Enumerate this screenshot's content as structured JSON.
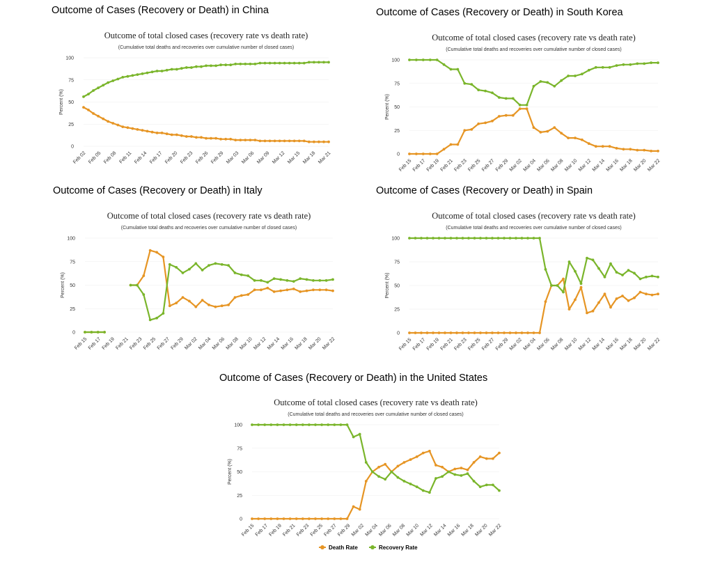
{
  "colors": {
    "death": "#e69524",
    "recovery": "#7ab52b"
  },
  "legend": {
    "death_label": "Death Rate",
    "recovery_label": "Recovery Rate"
  },
  "chart_data": [
    {
      "type": "line",
      "heading": "Outcome of Cases (Recovery or Death) in China",
      "title": "Outcome of total closed cases (recovery rate vs death rate)",
      "subtitle": "(Cumulative total deaths and recoveries over cumulative number of closed cases)",
      "ylabel": "Percent (%)",
      "ylim": [
        0,
        100
      ],
      "yticks": [
        0,
        25,
        50,
        75,
        100
      ],
      "xtick_labels": [
        "Feb 02",
        "Feb 05",
        "Feb 08",
        "Feb 11",
        "Feb 14",
        "Feb 17",
        "Feb 20",
        "Feb 23",
        "Feb 26",
        "Feb 29",
        "Mar 03",
        "Mar 06",
        "Mar 09",
        "Mar 12",
        "Mar 15",
        "Mar 18",
        "Mar 21"
      ],
      "series": [
        {
          "name": "Death Rate",
          "values": [
            44,
            41,
            37,
            34,
            31,
            28,
            26,
            24,
            22,
            21,
            20,
            19,
            18,
            17,
            16,
            15,
            15,
            14,
            13,
            13,
            12,
            11,
            11,
            10,
            10,
            9,
            9,
            9,
            8,
            8,
            8,
            7,
            7,
            7,
            7,
            7,
            6,
            6,
            6,
            6,
            6,
            6,
            6,
            6,
            6,
            6,
            5,
            5,
            5,
            5,
            5
          ]
        },
        {
          "name": "Recovery Rate",
          "values": [
            56,
            59,
            63,
            66,
            69,
            72,
            74,
            76,
            78,
            79,
            80,
            81,
            82,
            83,
            84,
            85,
            85,
            86,
            87,
            87,
            88,
            89,
            89,
            90,
            90,
            91,
            91,
            91,
            92,
            92,
            92,
            93,
            93,
            93,
            93,
            93,
            94,
            94,
            94,
            94,
            94,
            94,
            94,
            94,
            94,
            94,
            95,
            95,
            95,
            95,
            95
          ]
        }
      ]
    },
    {
      "type": "line",
      "heading": "Outcome of Cases (Recovery or Death) in South Korea",
      "title": "Outcome of total closed cases (recovery rate vs death rate)",
      "subtitle": "(Cumulative total deaths and recoveries over cumulative number of closed cases)",
      "ylabel": "Percent (%)",
      "ylim": [
        0,
        100
      ],
      "yticks": [
        0,
        25,
        50,
        75,
        100
      ],
      "xtick_labels": [
        "Feb 15",
        "Feb 17",
        "Feb 19",
        "Feb 21",
        "Feb 23",
        "Feb 25",
        "Feb 27",
        "Feb 29",
        "Mar 02",
        "Mar 04",
        "Mar 06",
        "Mar 08",
        "Mar 10",
        "Mar 12",
        "Mar 14",
        "Mar 16",
        "Mar 18",
        "Mar 20",
        "Mar 22"
      ],
      "series": [
        {
          "name": "Death Rate",
          "values": [
            0,
            0,
            0,
            0,
            0,
            5,
            10,
            10,
            25,
            26,
            32,
            33,
            35,
            40,
            41,
            41,
            48,
            48,
            28,
            23,
            24,
            28,
            22,
            17,
            17,
            15,
            11,
            8,
            8,
            8,
            6,
            5,
            5,
            4,
            4,
            3,
            3
          ]
        },
        {
          "name": "Recovery Rate",
          "values": [
            100,
            100,
            100,
            100,
            100,
            95,
            90,
            90,
            75,
            74,
            68,
            67,
            65,
            60,
            59,
            59,
            52,
            52,
            72,
            77,
            76,
            72,
            78,
            83,
            83,
            85,
            89,
            92,
            92,
            92,
            94,
            95,
            95,
            96,
            96,
            97,
            97
          ]
        }
      ]
    },
    {
      "type": "line",
      "heading": "Outcome of Cases (Recovery or Death) in Italy",
      "title": "Outcome of total closed cases (recovery rate vs death rate)",
      "subtitle": "(Cumulative total deaths and recoveries over cumulative number of closed cases)",
      "ylabel": "Percent (%)",
      "ylim": [
        0,
        100
      ],
      "yticks": [
        0,
        25,
        50,
        75,
        100
      ],
      "xtick_labels": [
        "Feb 15",
        "Feb 17",
        "Feb 19",
        "Feb 21",
        "Feb 23",
        "Feb 25",
        "Feb 27",
        "Feb 29",
        "Mar 02",
        "Mar 04",
        "Mar 06",
        "Mar 08",
        "Mar 10",
        "Mar 12",
        "Mar 14",
        "Mar 16",
        "Mar 18",
        "Mar 20",
        "Mar 22"
      ],
      "series": [
        {
          "name": "Death Rate",
          "values": [
            0,
            0,
            0,
            0,
            null,
            null,
            null,
            50,
            50,
            60,
            87,
            85,
            80,
            28,
            31,
            37,
            33,
            27,
            34,
            29,
            27,
            28,
            29,
            37,
            39,
            40,
            45,
            45,
            47,
            43,
            44,
            45,
            46,
            43,
            44,
            45,
            45,
            45,
            44
          ]
        },
        {
          "name": "Recovery Rate",
          "values": [
            0,
            0,
            0,
            0,
            null,
            null,
            null,
            50,
            50,
            40,
            13,
            15,
            20,
            72,
            69,
            63,
            67,
            73,
            66,
            71,
            73,
            72,
            71,
            63,
            61,
            60,
            55,
            55,
            53,
            57,
            56,
            55,
            54,
            57,
            56,
            55,
            55,
            55,
            56
          ]
        }
      ]
    },
    {
      "type": "line",
      "heading": "Outcome of Cases (Recovery or Death) in Spain",
      "title": "Outcome of total closed cases (recovery rate vs death rate)",
      "subtitle": "(Cumulative total deaths and recoveries over cumulative number of closed cases)",
      "ylabel": "Percent (%)",
      "ylim": [
        0,
        100
      ],
      "yticks": [
        0,
        25,
        50,
        75,
        100
      ],
      "xtick_labels": [
        "Feb 15",
        "Feb 17",
        "Feb 19",
        "Feb 21",
        "Feb 23",
        "Feb 25",
        "Feb 27",
        "Feb 29",
        "Mar 02",
        "Mar 04",
        "Mar 06",
        "Mar 08",
        "Mar 10",
        "Mar 12",
        "Mar 14",
        "Mar 16",
        "Mar 18",
        "Mar 20",
        "Mar 22"
      ],
      "series": [
        {
          "name": "Death Rate",
          "values": [
            0,
            0,
            0,
            0,
            0,
            0,
            0,
            0,
            0,
            0,
            0,
            0,
            0,
            0,
            0,
            0,
            0,
            0,
            0,
            0,
            0,
            0,
            0,
            33,
            50,
            50,
            57,
            25,
            35,
            48,
            21,
            23,
            32,
            41,
            27,
            36,
            39,
            34,
            37,
            43,
            41,
            40,
            41
          ]
        },
        {
          "name": "Recovery Rate",
          "values": [
            100,
            100,
            100,
            100,
            100,
            100,
            100,
            100,
            100,
            100,
            100,
            100,
            100,
            100,
            100,
            100,
            100,
            100,
            100,
            100,
            100,
            100,
            100,
            67,
            50,
            50,
            43,
            75,
            65,
            52,
            79,
            77,
            68,
            59,
            73,
            64,
            61,
            66,
            63,
            57,
            59,
            60,
            59
          ]
        }
      ]
    },
    {
      "type": "line",
      "heading": "Outcome of Cases (Recovery or Death) in the United States",
      "title": "Outcome of total closed cases (recovery rate vs death rate)",
      "subtitle": "(Cumulative total deaths and recoveries over cumulative number of closed cases)",
      "ylabel": "Percent (%)",
      "ylim": [
        0,
        100
      ],
      "yticks": [
        0,
        25,
        50,
        75,
        100
      ],
      "xtick_labels": [
        "Feb 15",
        "Feb 17",
        "Feb 19",
        "Feb 21",
        "Feb 23",
        "Feb 25",
        "Feb 27",
        "Feb 29",
        "Mar 02",
        "Mar 04",
        "Mar 06",
        "Mar 08",
        "Mar 10",
        "Mar 12",
        "Mar 14",
        "Mar 16",
        "Mar 18",
        "Mar 20",
        "Mar 22"
      ],
      "series": [
        {
          "name": "Death Rate",
          "values": [
            0,
            0,
            0,
            0,
            0,
            0,
            0,
            0,
            0,
            0,
            0,
            0,
            0,
            0,
            0,
            0,
            13,
            10,
            40,
            50,
            55,
            58,
            50,
            56,
            60,
            63,
            66,
            70,
            72,
            57,
            55,
            50,
            53,
            54,
            52,
            60,
            66,
            64,
            64,
            70
          ]
        },
        {
          "name": "Recovery Rate",
          "values": [
            100,
            100,
            100,
            100,
            100,
            100,
            100,
            100,
            100,
            100,
            100,
            100,
            100,
            100,
            100,
            100,
            87,
            90,
            60,
            50,
            45,
            42,
            50,
            44,
            40,
            37,
            34,
            30,
            28,
            43,
            45,
            50,
            47,
            46,
            48,
            40,
            34,
            36,
            36,
            30
          ]
        }
      ]
    }
  ]
}
